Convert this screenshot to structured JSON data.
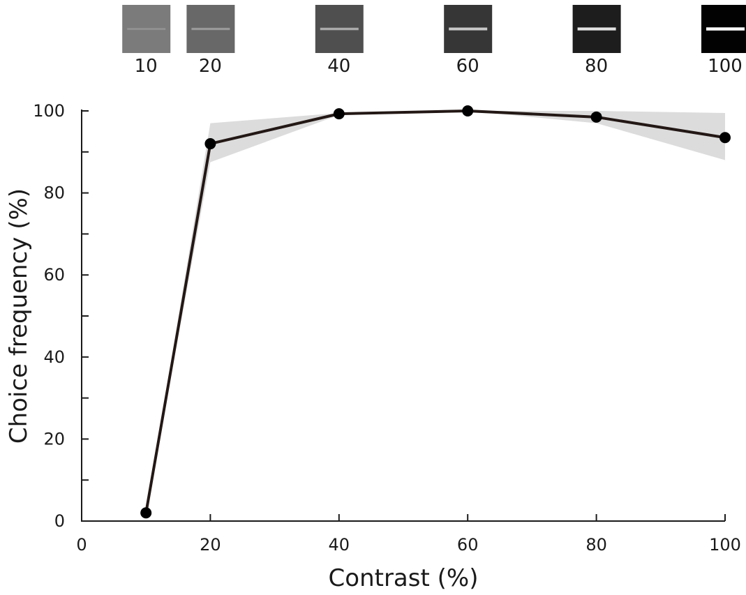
{
  "chart_data": {
    "type": "line",
    "xlabel": "Contrast (%)",
    "ylabel": "Choice frequency  (%)",
    "xlim": [
      0,
      100
    ],
    "ylim": [
      0,
      100
    ],
    "xticks": [
      0,
      20,
      40,
      60,
      80,
      100
    ],
    "yticks": [
      0,
      20,
      40,
      60,
      80,
      100
    ],
    "x_tick_labels": [
      "0",
      "20",
      "40",
      "60",
      "80",
      "100"
    ],
    "y_tick_labels": [
      "0",
      "20",
      "40",
      "60",
      "80",
      "100"
    ],
    "x": [
      10,
      20,
      40,
      60,
      80,
      100
    ],
    "y": [
      2,
      92,
      99.3,
      100,
      98.5,
      93.5
    ],
    "band_upper": [
      2,
      97,
      99.5,
      100,
      100,
      99.5
    ],
    "band_lower": [
      2,
      87.5,
      99,
      100,
      97,
      88
    ],
    "grid": false,
    "stimulus_swatches": [
      {
        "label": "10",
        "contrast": 10,
        "fill": "#7b7b7b",
        "line": "#909090"
      },
      {
        "label": "20",
        "contrast": 20,
        "fill": "#686868",
        "line": "#999999"
      },
      {
        "label": "40",
        "contrast": 40,
        "fill": "#4f4f4f",
        "line": "#aaaaaa"
      },
      {
        "label": "60",
        "contrast": 60,
        "fill": "#363636",
        "line": "#c8c8c8"
      },
      {
        "label": "80",
        "contrast": 80,
        "fill": "#1d1d1d",
        "line": "#e2e2e2"
      },
      {
        "label": "100",
        "contrast": 100,
        "fill": "#020202",
        "line": "#ffffff"
      }
    ],
    "colors": {
      "line": "#231815",
      "marker": "#000000",
      "band": "#dcdcdc",
      "axis": "#1a1a1a"
    }
  }
}
